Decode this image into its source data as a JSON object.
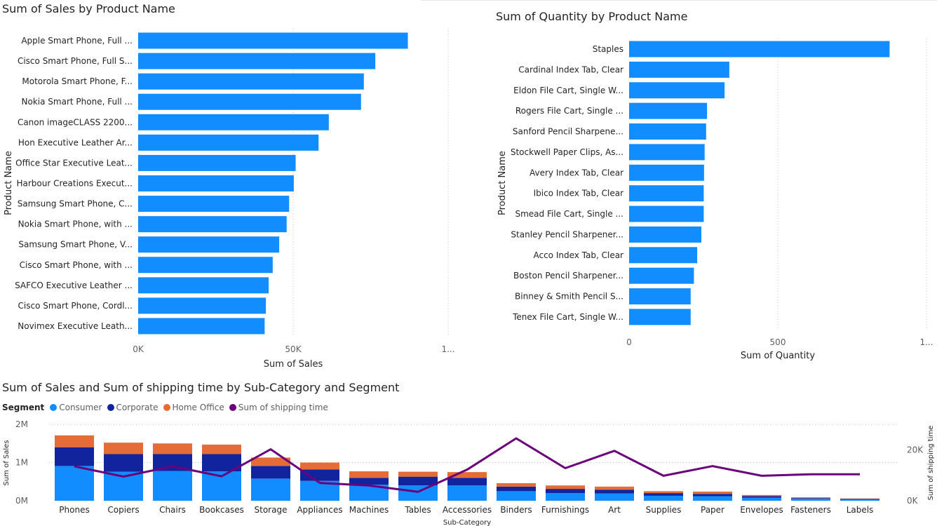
{
  "charts": {
    "sales": {
      "title": "Sum of Sales by Product Name",
      "xlabel": "Sum of Sales",
      "ylabel": "Product Name",
      "ticks": [
        "0K",
        "50K",
        "1..."
      ],
      "color": "#118DFF"
    },
    "quantity": {
      "title": "Sum of Quantity by Product Name",
      "xlabel": "Sum of Quantity",
      "ylabel": "Product Name",
      "ticks": [
        "0",
        "500",
        "1..."
      ],
      "color": "#118DFF"
    },
    "combo": {
      "title": "Sum of Sales and Sum of shipping time by Sub-Category and Segment",
      "legend_title": "Segment",
      "legend": [
        "Consumer",
        "Corporate",
        "Home Office",
        "Sum of shipping time"
      ],
      "xlabel": "Sub-Category",
      "ylabel_left": "Sum of Sales",
      "ylabel_right": "Sum of shipping time",
      "left_ticks": [
        "0M",
        "1M",
        "2M"
      ],
      "right_ticks": [
        "0K",
        "20K"
      ],
      "colors": {
        "consumer": "#118DFF",
        "corporate": "#12239E",
        "home_office": "#E66C37",
        "line": "#6B007B"
      }
    }
  },
  "chart_data": [
    {
      "type": "bar",
      "orientation": "horizontal",
      "title": "Sum of Sales by Product Name",
      "xlabel": "Sum of Sales",
      "ylabel": "Product Name",
      "xlim": [
        0,
        100000
      ],
      "categories": [
        "Apple Smart Phone, Full ...",
        "Cisco Smart Phone, Full S...",
        "Motorola Smart Phone, F...",
        "Nokia Smart Phone, Full ...",
        "Canon imageCLASS 2200...",
        "Hon Executive Leather Ar...",
        "Office Star Executive Leat...",
        "Harbour Creations Execut...",
        "Samsung Smart Phone, C...",
        "Nokia Smart Phone, with ...",
        "Samsung Smart Phone, V...",
        "Cisco Smart Phone, with ...",
        "SAFCO Executive Leather ...",
        "Cisco Smart Phone, Cordl...",
        "Novimex Executive Leath..."
      ],
      "values": [
        87000,
        76500,
        72800,
        71900,
        61500,
        58200,
        50800,
        50200,
        48700,
        47900,
        45500,
        43400,
        42100,
        41200,
        40800
      ]
    },
    {
      "type": "bar",
      "orientation": "horizontal",
      "title": "Sum of Quantity by Product Name",
      "xlabel": "Sum of Quantity",
      "ylabel": "Product Name",
      "xlim": [
        0,
        1000
      ],
      "categories": [
        "Staples",
        "Cardinal Index Tab, Clear",
        "Eldon File Cart, Single W...",
        "Rogers File Cart, Single ...",
        "Sanford Pencil Sharpene...",
        "Stockwell Paper Clips, As...",
        "Avery Index Tab, Clear",
        "Ibico Index Tab, Clear",
        "Smead File Cart, Single ...",
        "Stanley Pencil Sharpener...",
        "Acco Index Tab, Clear",
        "Boston Pencil Sharpener...",
        "Binney & Smith Pencil S...",
        "Tenex File Cart, Single W..."
      ],
      "values": [
        876,
        337,
        321,
        262,
        259,
        254,
        252,
        251,
        251,
        243,
        229,
        218,
        207,
        207
      ]
    },
    {
      "type": "bar",
      "stacked": true,
      "title": "Sum of Sales and Sum of shipping time by Sub-Category and Segment",
      "xlabel": "Sub-Category",
      "ylabel": "Sum of Sales",
      "ylabel_right": "Sum of shipping time",
      "ylim": [
        0,
        2000000
      ],
      "ylim_right": [
        0,
        30000
      ],
      "categories": [
        "Phones",
        "Copiers",
        "Chairs",
        "Bookcases",
        "Storage",
        "Appliances",
        "Machines",
        "Tables",
        "Accessories",
        "Binders",
        "Furnishings",
        "Art",
        "Supplies",
        "Paper",
        "Envelopes",
        "Fasteners",
        "Labels"
      ],
      "series": [
        {
          "name": "Consumer",
          "values": [
            910000,
            760000,
            780000,
            770000,
            580000,
            520000,
            420000,
            400000,
            400000,
            250000,
            200000,
            190000,
            130000,
            120000,
            80000,
            50000,
            30000
          ]
        },
        {
          "name": "Corporate",
          "values": [
            490000,
            460000,
            440000,
            450000,
            330000,
            300000,
            180000,
            230000,
            200000,
            120000,
            110000,
            100000,
            70000,
            60000,
            40000,
            20000,
            20000
          ]
        },
        {
          "name": "Home Office",
          "values": [
            310000,
            300000,
            280000,
            250000,
            220000,
            180000,
            170000,
            130000,
            150000,
            90000,
            90000,
            80000,
            50000,
            60000,
            30000,
            20000,
            10000
          ]
        },
        {
          "name": "Sum of shipping time",
          "axis": "right",
          "type": "line",
          "values": [
            13500,
            9500,
            13500,
            9600,
            20200,
            7000,
            6000,
            3500,
            12200,
            24500,
            12800,
            19600,
            9800,
            13600,
            9800,
            10400,
            10400
          ]
        }
      ],
      "legend": "top-left",
      "grid": true
    }
  ]
}
